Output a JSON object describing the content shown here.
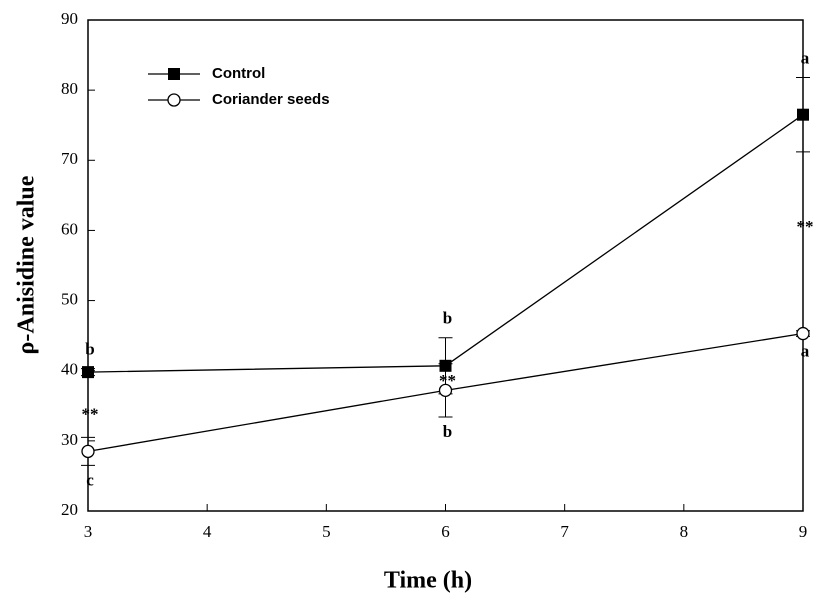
{
  "chart_data": {
    "type": "line",
    "x_label": "Time (h)",
    "y_label": "ρ-Anisidine value",
    "x": [
      3,
      6,
      9
    ],
    "series": [
      {
        "name": "Control",
        "color": "#000000",
        "marker": "square",
        "values": [
          39.8,
          40.7,
          76.5
        ],
        "errors": [
          0.5,
          4,
          5.3
        ],
        "letters": [
          "b",
          "b",
          "a"
        ]
      },
      {
        "name": "Coriander seeds",
        "color": "#000000",
        "marker": "circle",
        "values": [
          28.5,
          37.2,
          45.3
        ],
        "errors": [
          2,
          3.8,
          0.4
        ],
        "letters": [
          "c",
          "b",
          "a"
        ]
      }
    ],
    "significance": [
      "**",
      "**",
      "**"
    ],
    "xlim": [
      3,
      9
    ],
    "xticks": [
      3,
      4,
      5,
      6,
      7,
      8,
      9
    ],
    "ylim": [
      20,
      90
    ],
    "yticks": [
      20,
      30,
      40,
      50,
      60,
      70,
      80,
      90
    ],
    "legend": "upper left"
  }
}
